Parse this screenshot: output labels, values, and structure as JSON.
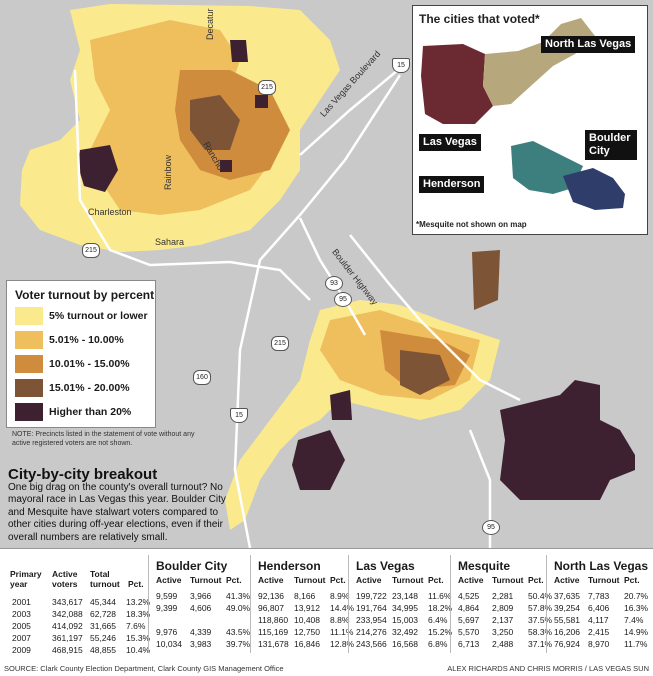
{
  "colors": {
    "background": "#c9c9c9",
    "roads": "#ffffff",
    "turnout_5_or_lower": "#fbea8d",
    "turnout_5_10": "#eebf5c",
    "turnout_10_15": "#cf8c3d",
    "turnout_15_20": "#7e5437",
    "turnout_over_20": "#3e2130",
    "inset_las_vegas": "#6b2a32",
    "inset_north_las_vegas": "#b6a77c",
    "inset_henderson": "#3d7f7f",
    "inset_boulder_city": "#2f3d6b"
  },
  "road_labels": {
    "decatur": "Decatur",
    "las_vegas_blvd": "Las Vegas Boulevard",
    "rancho": "Rancho",
    "rainbow": "Rainbow",
    "charleston": "Charleston",
    "sahara": "Sahara",
    "boulder_highway": "Boulder Highway"
  },
  "shields": {
    "i15_north": "15",
    "i15_south": "15",
    "r215_north": "215",
    "r215_west": "215",
    "r215_east": "215",
    "us93": "93",
    "us95_mid": "95",
    "us95_south": "95",
    "r160": "160"
  },
  "inset": {
    "title": "The cities that voted*",
    "cities": {
      "north_las_vegas": "North Las Vegas",
      "las_vegas": "Las Vegas",
      "boulder_city": "Boulder City",
      "henderson": "Henderson"
    },
    "note": "*Mesquite not shown on map"
  },
  "legend": {
    "title": "Voter turnout by percent",
    "items": [
      {
        "label": "5% turnout or lower",
        "color": "#fbea8d"
      },
      {
        "label": "5.01% - 10.00%",
        "color": "#eebf5c"
      },
      {
        "label": "10.01% - 15.00%",
        "color": "#cf8c3d"
      },
      {
        "label": "15.01% - 20.00%",
        "color": "#7e5437"
      },
      {
        "label": "Higher than 20%",
        "color": "#3e2130"
      }
    ],
    "note": "NOTE: Precincts listed in the statement of vote without any active registered voters are not shown."
  },
  "breakout": {
    "title": "City-by-city breakout",
    "body": "One big drag on the county's overall turnout? No mayoral race in Las Vegas this year. Boulder City and Mesquite have stalwart voters compared to other cities during off-year elections, even if their overall numbers are relatively small."
  },
  "table": {
    "county_headers": {
      "year_line1": "Primary",
      "year_line2": "year",
      "active_line1": "Active",
      "active_line2": "voters",
      "total_line1": "Total",
      "total_line2": "turnout",
      "pct": "Pct."
    },
    "city_headers": {
      "active": "Active",
      "turnout": "Turnout",
      "pct": "Pct."
    },
    "years": [
      "2001",
      "2003",
      "2005",
      "2007",
      "2009"
    ],
    "county": [
      [
        "343,617",
        "45,344",
        "13.2%"
      ],
      [
        "342,088",
        "62,728",
        "18.3%"
      ],
      [
        "414,092",
        "31,665",
        "7.6%"
      ],
      [
        "361,197",
        "55,246",
        "15.3%"
      ],
      [
        "468,915",
        "48,855",
        "10.4%"
      ]
    ],
    "cities": [
      {
        "name": "Boulder City",
        "rows": [
          [
            "9,599",
            "3,966",
            "41.3%"
          ],
          [
            "9,399",
            "4,606",
            "49.0%"
          ],
          [
            "",
            "",
            ""
          ],
          [
            "9,976",
            "4,339",
            "43.5%"
          ],
          [
            "10,034",
            "3,983",
            "39.7%"
          ]
        ]
      },
      {
        "name": "Henderson",
        "rows": [
          [
            "92,136",
            "8,166",
            "8.9%"
          ],
          [
            "96,807",
            "13,912",
            "14.4%"
          ],
          [
            "118,860",
            "10,408",
            "8.8%"
          ],
          [
            "115,169",
            "12,750",
            "11.1%"
          ],
          [
            "131,678",
            "16,846",
            "12.8%"
          ]
        ]
      },
      {
        "name": "Las Vegas",
        "rows": [
          [
            "199,722",
            "23,148",
            "11.6%"
          ],
          [
            "191,764",
            "34,995",
            "18.2%"
          ],
          [
            "233,954",
            "15,003",
            "6.4%"
          ],
          [
            "214,276",
            "32,492",
            "15.2%"
          ],
          [
            "243,566",
            "16,568",
            "6.8%"
          ]
        ]
      },
      {
        "name": "Mesquite",
        "rows": [
          [
            "4,525",
            "2,281",
            "50.4%"
          ],
          [
            "4,864",
            "2,809",
            "57.8%"
          ],
          [
            "5,697",
            "2,137",
            "37.5%"
          ],
          [
            "5,570",
            "3,250",
            "58.3%"
          ],
          [
            "6,713",
            "2,488",
            "37.1%"
          ]
        ]
      },
      {
        "name": "North Las Vegas",
        "rows": [
          [
            "37,635",
            "7,783",
            "20.7%"
          ],
          [
            "39,254",
            "6,406",
            "16.3%"
          ],
          [
            "55,581",
            "4,117",
            "7.4%"
          ],
          [
            "16,206",
            "2,415",
            "14.9%"
          ],
          [
            "76,924",
            "8,970",
            "11.7%"
          ]
        ]
      }
    ]
  },
  "footer": {
    "source": "SOURCE: Clark County Election Department, Clark County GIS Management Office",
    "credit": "ALEX RICHARDS AND CHRIS MORRIS / LAS VEGAS SUN"
  }
}
